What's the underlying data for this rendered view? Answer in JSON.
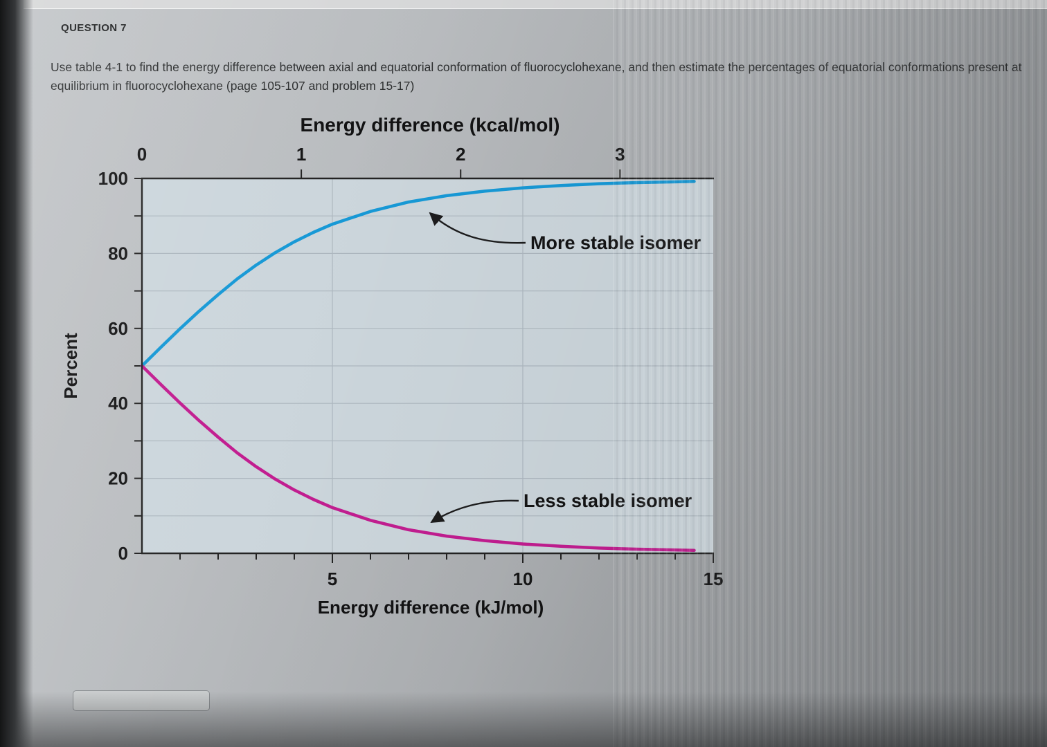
{
  "question": {
    "label": "QUESTION 7",
    "text": "Use table 4-1 to find the energy difference between axial and equatorial conformation of fluorocyclohexane, and then estimate the percentages of equatorial conformations present at equilibrium in fluorocyclohexane (page 105-107 and problem 15-17)",
    "answer_value": ""
  },
  "chart_data": {
    "type": "line",
    "title": "Energy difference (kcal/mol)",
    "top_axis": {
      "label": "Energy difference (kcal/mol)",
      "unit": "kcal/mol",
      "ticks": [
        0,
        1,
        2,
        3
      ]
    },
    "bottom_axis": {
      "label": "Energy difference (kJ/mol)",
      "unit": "kJ/mol",
      "range": [
        0,
        15
      ],
      "ticks": [
        5,
        10,
        15
      ],
      "minor_tick_step": 1,
      "gridlines": [
        5,
        10
      ]
    },
    "y_axis": {
      "label": "Percent",
      "range": [
        0,
        100
      ],
      "ticks": [
        0,
        20,
        40,
        60,
        80,
        100
      ],
      "minor_tick_step": 10
    },
    "x_kj": [
      0,
      0.5,
      1,
      1.5,
      2,
      2.5,
      3,
      3.5,
      4,
      4.5,
      5,
      6,
      7,
      8,
      9,
      10,
      11,
      12,
      13,
      14,
      14.5
    ],
    "series": [
      {
        "name": "More stable isomer",
        "color": "#1799d6",
        "values": [
          50,
          55,
          59.9,
          64.6,
          69,
          73.2,
          76.9,
          80.2,
          83.1,
          85.6,
          87.8,
          91.2,
          93.7,
          95.4,
          96.6,
          97.5,
          98.1,
          98.6,
          98.9,
          99.1,
          99.2
        ]
      },
      {
        "name": "Less stable isomer",
        "color": "#c21d90",
        "values": [
          50,
          45,
          40.1,
          35.4,
          31,
          26.8,
          23.1,
          19.8,
          16.9,
          14.4,
          12.2,
          8.8,
          6.3,
          4.6,
          3.4,
          2.5,
          1.9,
          1.4,
          1.1,
          0.9,
          0.8
        ]
      }
    ],
    "legend_position": "annotated-on-plot",
    "grid": true
  }
}
